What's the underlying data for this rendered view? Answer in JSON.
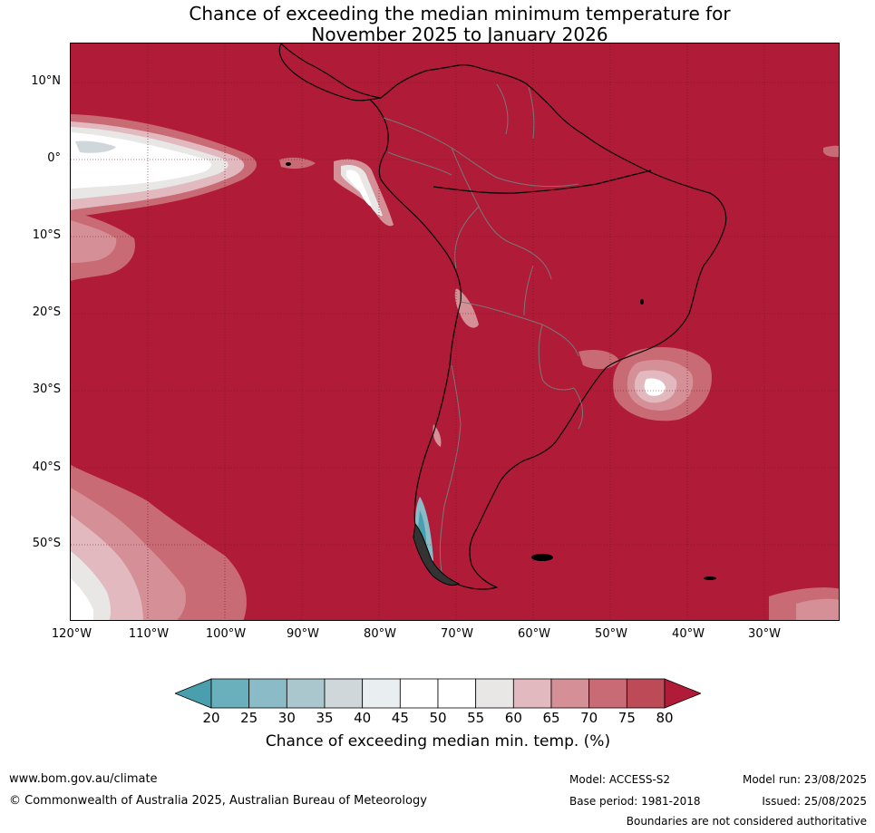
{
  "title": {
    "line1": "Chance of exceeding the median minimum temperature for",
    "line2": "November 2025 to January 2026"
  },
  "map": {
    "lat_labels": [
      "10°N",
      "0°",
      "10°S",
      "20°S",
      "30°S",
      "40°S",
      "50°S"
    ],
    "lon_labels": [
      "120°W",
      "110°W",
      "100°W",
      "90°W",
      "80°W",
      "70°W",
      "60°W",
      "50°W",
      "40°W",
      "30°W"
    ],
    "background_color": "#b01c38",
    "extent": {
      "lon": [
        -120,
        -20
      ],
      "lat": [
        -60,
        15
      ]
    }
  },
  "colorbar": {
    "ticks": [
      "20",
      "25",
      "30",
      "35",
      "40",
      "45",
      "50",
      "55",
      "60",
      "65",
      "70",
      "75",
      "80"
    ],
    "colors": [
      "#4a9fae",
      "#6aafbc",
      "#8bbbc6",
      "#a9c7cd",
      "#cfd7db",
      "#e9eff1",
      "#ffffff",
      "#ffffff",
      "#e9e6e6",
      "#e1b9bf",
      "#d58f97",
      "#c96b75",
      "#bd4a57",
      "#b01c38"
    ],
    "label": "Chance of exceeding median min. temp. (%)"
  },
  "footer": {
    "website": "www.bom.gov.au/climate",
    "copyright": "© Commonwealth of Australia 2025, Australian Bureau of Meteorology",
    "model": "Model: ACCESS-S2",
    "base_period": "Base period: 1981-2018",
    "model_run": "Model run: 23/08/2025",
    "issued": "Issued: 25/08/2025",
    "disclaimer": "Boundaries are not considered authoritative"
  }
}
